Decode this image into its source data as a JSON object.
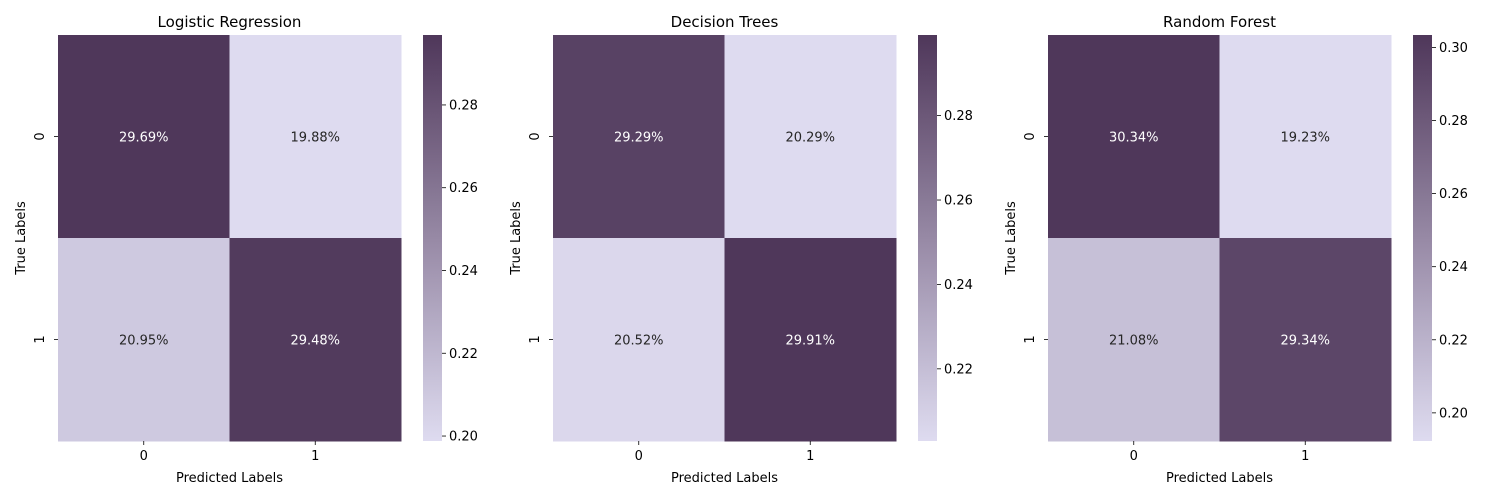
{
  "chart_data": [
    {
      "type": "heatmap",
      "title": "Logistic Regression",
      "xlabel": "Predicted Labels",
      "ylabel": "True Labels",
      "x_categories": [
        "0",
        "1"
      ],
      "y_categories": [
        "0",
        "1"
      ],
      "values": [
        [
          0.2969,
          0.1988
        ],
        [
          0.2095,
          0.2948
        ]
      ],
      "cell_labels": [
        [
          "29.69%",
          "19.88%"
        ],
        [
          "20.95%",
          "29.48%"
        ]
      ],
      "colorbar": {
        "min": 0.1988,
        "max": 0.2969,
        "ticks": [
          "0.20",
          "0.22",
          "0.24",
          "0.26",
          "0.28"
        ]
      }
    },
    {
      "type": "heatmap",
      "title": "Decision Trees",
      "xlabel": "Predicted Labels",
      "ylabel": "True Labels",
      "x_categories": [
        "0",
        "1"
      ],
      "y_categories": [
        "0",
        "1"
      ],
      "values": [
        [
          0.2929,
          0.2029
        ],
        [
          0.2052,
          0.2991
        ]
      ],
      "cell_labels": [
        [
          "29.29%",
          "20.29%"
        ],
        [
          "20.52%",
          "29.91%"
        ]
      ],
      "colorbar": {
        "min": 0.2029,
        "max": 0.2991,
        "ticks": [
          "0.22",
          "0.24",
          "0.26",
          "0.28"
        ]
      }
    },
    {
      "type": "heatmap",
      "title": "Random Forest",
      "xlabel": "Predicted Labels",
      "ylabel": "True Labels",
      "x_categories": [
        "0",
        "1"
      ],
      "y_categories": [
        "0",
        "1"
      ],
      "values": [
        [
          0.3034,
          0.1923
        ],
        [
          0.2108,
          0.2934
        ]
      ],
      "cell_labels": [
        [
          "30.34%",
          "19.23%"
        ],
        [
          "21.08%",
          "29.34%"
        ]
      ],
      "colorbar": {
        "min": 0.1923,
        "max": 0.3034,
        "ticks": [
          "0.20",
          "0.22",
          "0.24",
          "0.26",
          "0.28",
          "0.30"
        ]
      }
    }
  ],
  "colors": {
    "low": "#dedbf0",
    "high": "#4f375a",
    "text_light": "#ffffff",
    "text_dark": "#262626",
    "axis": "#000000"
  }
}
